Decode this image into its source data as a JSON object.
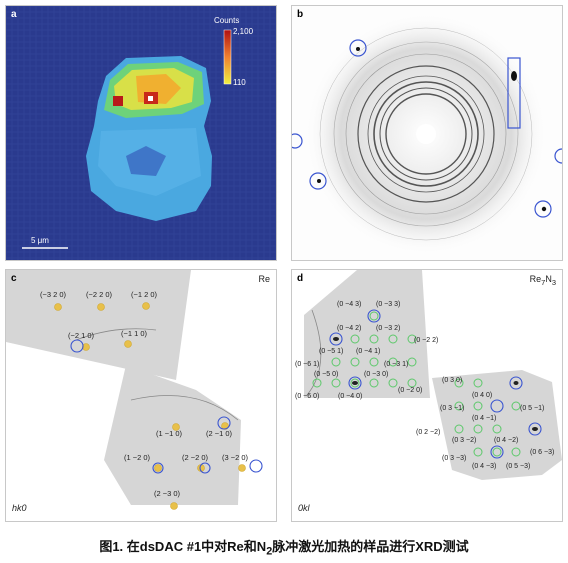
{
  "panel_a": {
    "label": "a",
    "colorbar_title": "Counts",
    "colorbar_max": "2,100",
    "colorbar_min": "110",
    "scalebar": "5 μm"
  },
  "panel_b": {
    "label": "b"
  },
  "panel_c": {
    "label": "c",
    "phase": "Re",
    "plane": "hk0",
    "reflections": [
      "(−3 2 0)",
      "(−2 2 0)",
      "(−1 2 0)",
      "(−2 1 0)",
      "(−1 1 0)",
      "(1 −1 0)",
      "(2 −1 0)",
      "(1 −2 0)",
      "(2 −2 0)",
      "(3 −2 0)",
      "(2 −3 0)"
    ]
  },
  "panel_d": {
    "label": "d",
    "phase_main": "Re",
    "phase_sub1": "7",
    "phase_mid": "N",
    "phase_sub2": "3",
    "plane": "0kl",
    "reflections": [
      "(0 −4 3)",
      "(0 −3 3)",
      "(0 −4 2)",
      "(0 −3 2)",
      "(0 −2 2)",
      "(0 −5 1)",
      "(0 −4 1)",
      "(0 −6 1)",
      "(0 −3 1)",
      "(0 −5 0)",
      "(0 −3 0)",
      "(0 −6 0)",
      "(0 −4 0)",
      "(0 −2 0)",
      "(0 3 0)",
      "(0 4 0)",
      "(0 3 −1)",
      "(0 5 −1)",
      "(0 4 −1)",
      "(0 2 −2)",
      "(0 3 −2)",
      "(0 4 −2)",
      "(0 6 −3)",
      "(0 3 −3)",
      "(0 4 −3)",
      "(0 5 −3)"
    ]
  },
  "caption": {
    "prefix": "图1. 在dsDAC #1中对Re和N",
    "sub": "2",
    "suffix": "脉冲激光加热的样品进行XRD测试"
  },
  "colors": {
    "map_background": "#2a3a8e",
    "rhenium_marker": "#e8c04a",
    "nitride_marker": "#5cc86a",
    "highlight_circle": "#3a55d0"
  }
}
